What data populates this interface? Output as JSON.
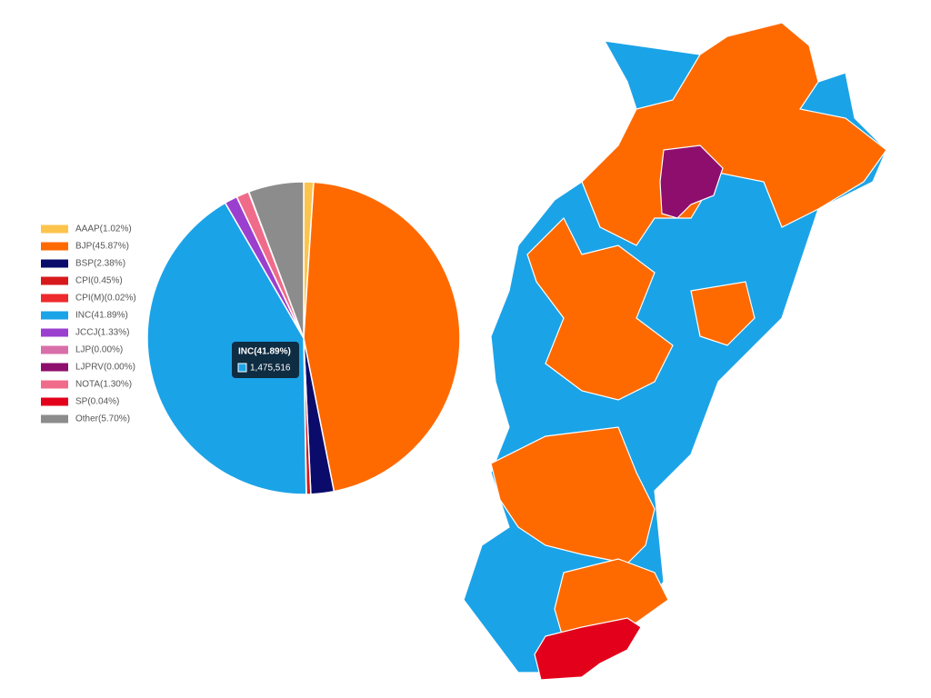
{
  "chart_data": {
    "type": "pie",
    "categories": [
      "AAAP(1.02%)",
      "BJP(45.87%)",
      "BSP(2.38%)",
      "CPI(0.45%)",
      "CPI(M)(0.02%)",
      "INC(41.89%)",
      "JCCJ(1.33%)",
      "LJP(0.00%)",
      "LJPRV(0.00%)",
      "NOTA(1.30%)",
      "SP(0.04%)",
      "Other(5.70%)"
    ],
    "values": [
      1.02,
      45.87,
      2.38,
      0.45,
      0.02,
      41.89,
      1.33,
      0.0,
      0.0,
      1.3,
      0.04,
      5.7
    ],
    "colors": [
      "#fcc44c",
      "#ff6a00",
      "#0b0b6b",
      "#d7191c",
      "#ee2a2e",
      "#1ba3e8",
      "#9b3fcf",
      "#d96fa8",
      "#8e0e6e",
      "#f06b8a",
      "#e3001b",
      "#8c8c8c"
    ],
    "tooltip": {
      "title": "INC(41.89%)",
      "text": "1,475,516"
    }
  }
}
